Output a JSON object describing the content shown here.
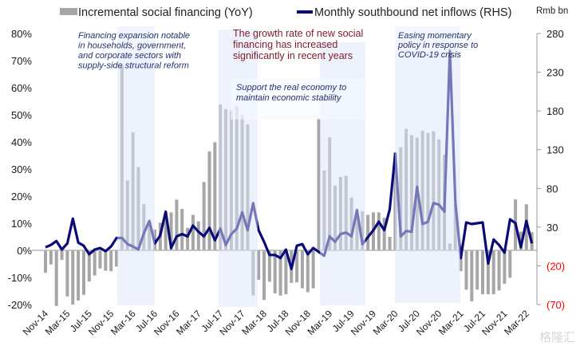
{
  "chart_data": {
    "type": "bar",
    "legend": {
      "position": "top",
      "bar_label": "Incremental social financing (YoY)",
      "line_label": "Monthly southbound net inflows (RHS)"
    },
    "right_axis_unit": "Rmb bn",
    "left_axis": {
      "range": [
        -20,
        80
      ],
      "ticks": [
        "80%",
        "70%",
        "60%",
        "50%",
        "40%",
        "30%",
        "20%",
        "10%",
        "0%",
        "-10%",
        "-20%"
      ]
    },
    "right_axis": {
      "range": [
        -70,
        280
      ],
      "ticks": [
        "280",
        "230",
        "180",
        "130",
        "80",
        "30",
        "(20)",
        "(70)"
      ],
      "negative_color": "#ff0000"
    },
    "x_tick_labels": [
      "Nov-14",
      "Mar-15",
      "Jul-15",
      "Nov-15",
      "Mar-16",
      "Jul-16",
      "Nov-16",
      "Mar-17",
      "Jul-17",
      "Nov-17",
      "Mar-18",
      "Jul-18",
      "Nov-18",
      "Mar-19",
      "Jul-19",
      "Nov-19",
      "Mar-20",
      "Jul-20",
      "Nov-20",
      "Mar-21",
      "Jul-21",
      "Nov-21",
      "Mar-22"
    ],
    "x_start": "Nov-14",
    "series": [
      {
        "name": "Incremental social financing (YoY)",
        "type": "bar",
        "axis": "left",
        "unit": "%",
        "color": "#a6a6a6",
        "values": [
          -8.3,
          -5.2,
          -20.5,
          -3.5,
          -17,
          -20,
          -18.5,
          -16.4,
          -11.5,
          -9.3,
          -6.7,
          -7.5,
          -7.7,
          -6,
          68,
          25.8,
          43.5,
          30.7,
          17,
          10.8,
          7.7,
          10.2,
          14,
          14,
          18.7,
          15.3,
          8.3,
          13.1,
          10.7,
          25.2,
          36.5,
          39.9,
          53.8,
          52.1,
          51.6,
          53.2,
          50.1,
          46.5,
          -16.7,
          -10.9,
          -18.3,
          -11.6,
          -15.9,
          -16.7,
          -16.2,
          -12,
          -11.8,
          -14,
          -15.4,
          -14,
          48.6,
          29.5,
          41.7,
          23.9,
          27.1,
          27.5,
          19.5,
          14.5,
          14.4,
          13.1,
          14,
          14,
          12,
          5,
          36,
          38,
          44.8,
          42.5,
          41.6,
          44.1,
          43.3,
          43.9,
          40.9,
          35.3,
          2.5,
          17,
          -7.7,
          -14.5,
          -18.8,
          -14.5,
          -16.2,
          -16.2,
          -16.2,
          -14.8,
          -12.3,
          -10.1,
          18.8,
          6.9,
          17,
          6.7
        ]
      },
      {
        "name": "Monthly southbound net inflows (RHS)",
        "type": "line",
        "axis": "right",
        "unit": "Rmb bn",
        "color": "#0a0a78",
        "values": [
          4,
          7,
          12,
          1,
          9,
          41,
          10,
          6,
          -5,
          1,
          3,
          -1,
          5,
          16,
          16,
          8,
          5,
          1,
          22,
          38,
          9,
          19,
          50,
          3,
          18,
          21,
          18,
          32,
          24,
          18,
          29,
          13,
          28,
          7,
          21,
          28,
          49,
          26,
          61,
          26,
          11,
          -6,
          -6,
          -10,
          1,
          -24,
          6,
          8,
          -5,
          3,
          -2,
          -7,
          18,
          11,
          21,
          23,
          18,
          52,
          8,
          17,
          26,
          37,
          26,
          53,
          125,
          18,
          25,
          24,
          82,
          34,
          37,
          61,
          59,
          50,
          258,
          62,
          -10,
          36,
          34,
          35,
          36,
          -17,
          14,
          7,
          -3,
          40,
          35,
          4,
          38,
          9
        ]
      }
    ],
    "highlight_periods": [
      "Jan-16 to Jul-16",
      "Jun-17 to Jan-18",
      "Jan-19 to Sep-19",
      "Mar-20 to Feb-21"
    ],
    "annotations": [
      "Financing expansion notable in households, government, and corporate sectors with supply-side structural reform",
      "The growth rate of new social financing has increased significantly in recent years",
      "Support the real economy to maintain economic stability",
      "Easing momentary policy in response to COVID-19 crisis"
    ],
    "grid": false
  },
  "watermark": "格隆汇"
}
